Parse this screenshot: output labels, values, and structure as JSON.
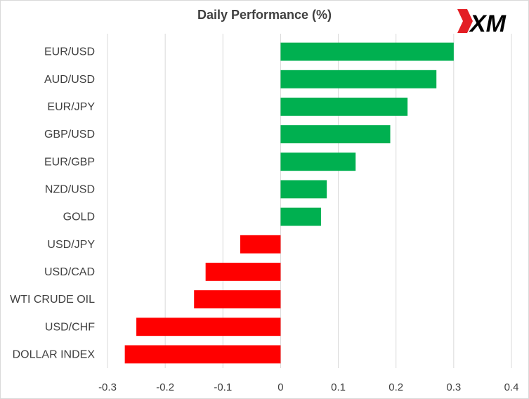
{
  "chart_data": {
    "type": "bar",
    "orientation": "horizontal",
    "title": "Daily Performance  (%)",
    "categories": [
      "EUR/USD",
      "AUD/USD",
      "EUR/JPY",
      "GBP/USD",
      "EUR/GBP",
      "NZD/USD",
      "GOLD",
      "USD/JPY",
      "USD/CAD",
      "WTI CRUDE OIL",
      "USD/CHF",
      "DOLLAR INDEX"
    ],
    "values": [
      0.3,
      0.27,
      0.22,
      0.19,
      0.13,
      0.08,
      0.07,
      -0.07,
      -0.13,
      -0.15,
      -0.25,
      -0.27
    ],
    "xlim": [
      -0.3,
      0.4
    ],
    "xticks": [
      -0.3,
      -0.2,
      -0.1,
      0,
      0.1,
      0.2,
      0.3,
      0.4
    ],
    "grid": "vertical",
    "legend": "none",
    "colors": {
      "positive": "#00b050",
      "negative": "#ff0000",
      "grid": "#d9d9d9",
      "text": "#404040"
    }
  },
  "brand": {
    "logo_text": "XM",
    "colors": {
      "accent": "#e31e24",
      "text": "#000000"
    }
  }
}
